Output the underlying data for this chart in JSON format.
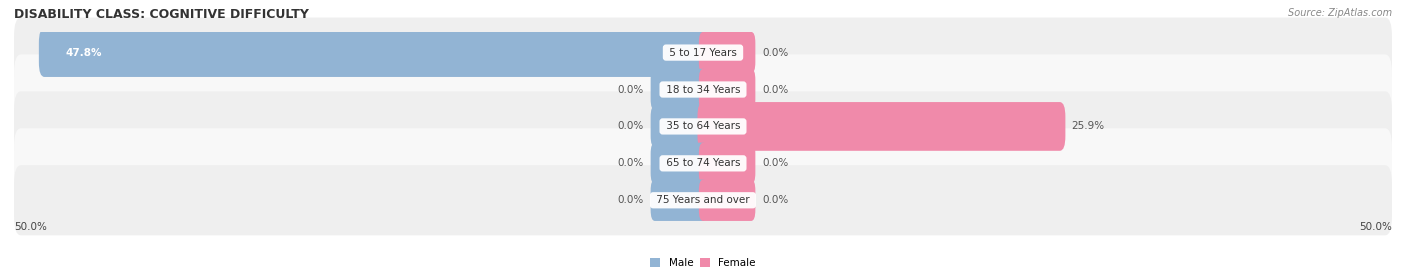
{
  "title": "DISABILITY CLASS: COGNITIVE DIFFICULTY",
  "source_text": "Source: ZipAtlas.com",
  "categories": [
    "5 to 17 Years",
    "18 to 34 Years",
    "35 to 64 Years",
    "65 to 74 Years",
    "75 Years and over"
  ],
  "male_values": [
    47.8,
    0.0,
    0.0,
    0.0,
    0.0
  ],
  "female_values": [
    0.0,
    0.0,
    25.9,
    0.0,
    0.0
  ],
  "male_color": "#92b4d4",
  "female_color": "#f08aaa",
  "male_label": "Male",
  "female_label": "Female",
  "xlim_left": -50,
  "xlim_right": 50,
  "x_axis_left_label": "50.0%",
  "x_axis_right_label": "50.0%",
  "row_bg_color_odd": "#efefef",
  "row_bg_color_even": "#f8f8f8",
  "stub_size": 3.5,
  "title_fontsize": 9,
  "source_fontsize": 7,
  "label_fontsize": 7.5,
  "value_fontsize": 7.5,
  "axis_label_fontsize": 7.5
}
